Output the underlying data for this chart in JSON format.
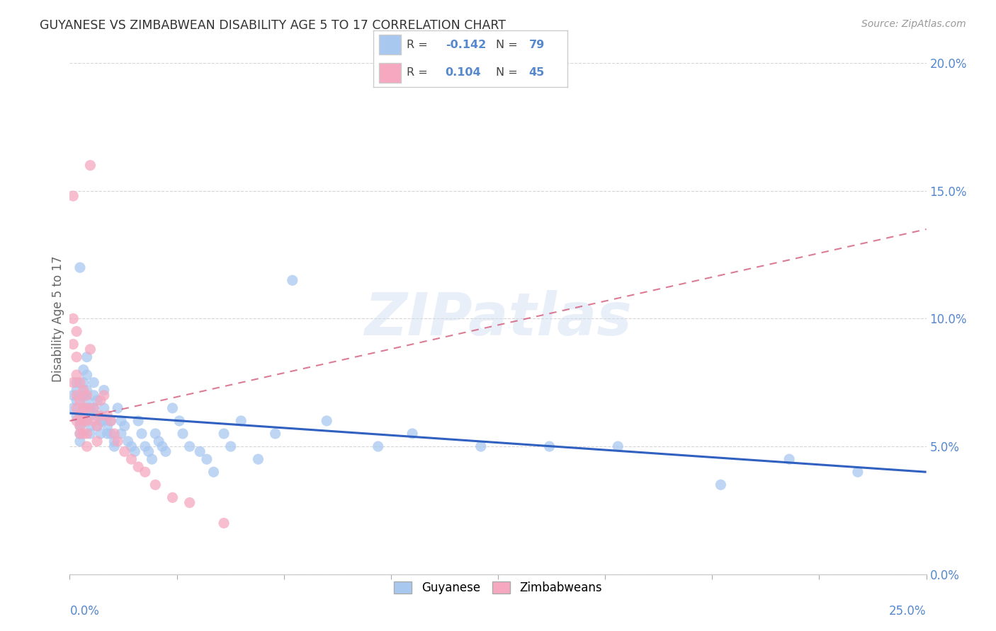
{
  "title": "GUYANESE VS ZIMBABWEAN DISABILITY AGE 5 TO 17 CORRELATION CHART",
  "source": "Source: ZipAtlas.com",
  "ylabel": "Disability Age 5 to 17",
  "xlim": [
    0.0,
    0.25
  ],
  "ylim": [
    0.0,
    0.2
  ],
  "xticks": [
    0.0,
    0.03125,
    0.0625,
    0.09375,
    0.125,
    0.15625,
    0.1875,
    0.21875,
    0.25
  ],
  "yticks": [
    0.0,
    0.05,
    0.1,
    0.15,
    0.2
  ],
  "x_edge_labels": [
    "0.0%",
    "25.0%"
  ],
  "yticklabels_right": [
    "0.0%",
    "5.0%",
    "10.0%",
    "15.0%",
    "20.0%"
  ],
  "watermark": "ZIPatlas",
  "legend_label1": "Guyanese",
  "legend_label2": "Zimbabweans",
  "R1": "-0.142",
  "N1": "79",
  "R2": "0.104",
  "N2": "45",
  "color1": "#a8c8f0",
  "color2": "#f5a8c0",
  "line_color1": "#3060c0",
  "line_color2": "#d05070",
  "axis_color": "#5588cc",
  "grid_color": "#cccccc",
  "guyanese_x": [
    0.001,
    0.001,
    0.002,
    0.002,
    0.002,
    0.002,
    0.003,
    0.003,
    0.003,
    0.003,
    0.003,
    0.004,
    0.004,
    0.004,
    0.004,
    0.004,
    0.005,
    0.005,
    0.005,
    0.005,
    0.006,
    0.006,
    0.006,
    0.006,
    0.007,
    0.007,
    0.007,
    0.008,
    0.008,
    0.008,
    0.009,
    0.009,
    0.01,
    0.01,
    0.01,
    0.011,
    0.011,
    0.012,
    0.012,
    0.013,
    0.013,
    0.014,
    0.015,
    0.015,
    0.016,
    0.017,
    0.018,
    0.019,
    0.02,
    0.021,
    0.022,
    0.023,
    0.024,
    0.025,
    0.026,
    0.027,
    0.028,
    0.03,
    0.032,
    0.033,
    0.035,
    0.038,
    0.04,
    0.042,
    0.045,
    0.047,
    0.05,
    0.055,
    0.06,
    0.065,
    0.075,
    0.09,
    0.1,
    0.12,
    0.14,
    0.16,
    0.19,
    0.21,
    0.23
  ],
  "guyanese_y": [
    0.07,
    0.065,
    0.072,
    0.068,
    0.075,
    0.062,
    0.06,
    0.058,
    0.055,
    0.052,
    0.12,
    0.08,
    0.075,
    0.07,
    0.065,
    0.06,
    0.085,
    0.078,
    0.072,
    0.068,
    0.065,
    0.062,
    0.058,
    0.055,
    0.075,
    0.07,
    0.065,
    0.068,
    0.062,
    0.058,
    0.06,
    0.055,
    0.072,
    0.065,
    0.06,
    0.058,
    0.055,
    0.06,
    0.055,
    0.052,
    0.05,
    0.065,
    0.06,
    0.055,
    0.058,
    0.052,
    0.05,
    0.048,
    0.06,
    0.055,
    0.05,
    0.048,
    0.045,
    0.055,
    0.052,
    0.05,
    0.048,
    0.065,
    0.06,
    0.055,
    0.05,
    0.048,
    0.045,
    0.04,
    0.055,
    0.05,
    0.06,
    0.045,
    0.055,
    0.115,
    0.06,
    0.05,
    0.055,
    0.05,
    0.05,
    0.05,
    0.035,
    0.045,
    0.04
  ],
  "zimbabwean_x": [
    0.001,
    0.001,
    0.001,
    0.001,
    0.002,
    0.002,
    0.002,
    0.002,
    0.002,
    0.002,
    0.003,
    0.003,
    0.003,
    0.003,
    0.003,
    0.004,
    0.004,
    0.004,
    0.004,
    0.005,
    0.005,
    0.005,
    0.005,
    0.005,
    0.006,
    0.006,
    0.007,
    0.007,
    0.008,
    0.008,
    0.009,
    0.009,
    0.01,
    0.011,
    0.012,
    0.013,
    0.014,
    0.016,
    0.018,
    0.02,
    0.022,
    0.025,
    0.03,
    0.035,
    0.045
  ],
  "zimbabwean_y": [
    0.148,
    0.1,
    0.09,
    0.075,
    0.095,
    0.085,
    0.078,
    0.07,
    0.065,
    0.06,
    0.075,
    0.068,
    0.062,
    0.058,
    0.055,
    0.072,
    0.065,
    0.06,
    0.055,
    0.07,
    0.065,
    0.06,
    0.055,
    0.05,
    0.088,
    0.16,
    0.065,
    0.06,
    0.058,
    0.052,
    0.068,
    0.062,
    0.07,
    0.062,
    0.06,
    0.055,
    0.052,
    0.048,
    0.045,
    0.042,
    0.04,
    0.035,
    0.03,
    0.028,
    0.02
  ],
  "trendline_blue_x0": 0.0,
  "trendline_blue_y0": 0.063,
  "trendline_blue_x1": 0.25,
  "trendline_blue_y1": 0.04,
  "trendline_pink_x0": 0.0,
  "trendline_pink_y0": 0.06,
  "trendline_pink_x1": 0.25,
  "trendline_pink_y1": 0.135
}
